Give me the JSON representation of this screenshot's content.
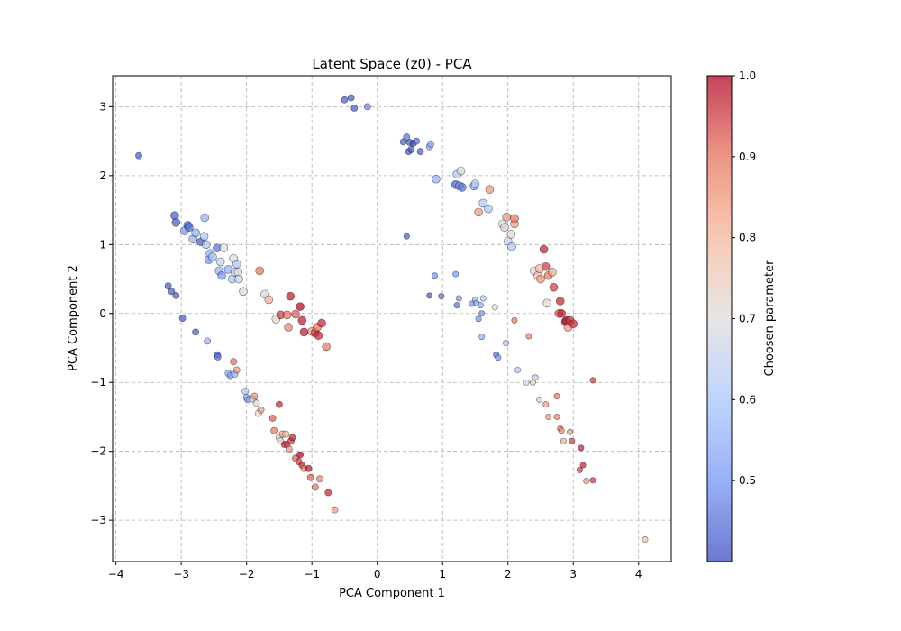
{
  "chart_data": {
    "type": "scatter",
    "title": "Latent Space (z0) - PCA",
    "xlabel": "PCA Component 1",
    "ylabel": "PCA Component 2",
    "xlim": [
      -4.05,
      4.5
    ],
    "ylim": [
      -3.6,
      3.45
    ],
    "xticks": [
      -4,
      -3,
      -2,
      -1,
      0,
      1,
      2,
      3,
      4
    ],
    "xtick_labels": [
      "−4",
      "−3",
      "−2",
      "−1",
      "0",
      "1",
      "2",
      "3",
      "4"
    ],
    "yticks": [
      -3,
      -2,
      -1,
      0,
      1,
      2,
      3
    ],
    "ytick_labels": [
      "−3",
      "−2",
      "−1",
      "0",
      "1",
      "2",
      "3"
    ],
    "grid": true,
    "colorbar": {
      "label": "Choosen parameter",
      "range": [
        0.4,
        1.0
      ],
      "ticks": [
        0.5,
        0.6,
        0.7,
        0.8,
        0.9,
        1.0
      ],
      "tick_labels": [
        "0.5",
        "0.6",
        "0.7",
        "0.8",
        "0.9",
        "1.0"
      ],
      "colormap": "coolwarm",
      "colors": [
        "#3b4cc0",
        "#7597f6",
        "#aac7fd",
        "#dddddd",
        "#f7b89c",
        "#e7745b",
        "#b40426"
      ]
    },
    "points": [
      [
        -3.65,
        2.29,
        0.42,
        1
      ],
      [
        -0.5,
        3.1,
        0.42,
        1
      ],
      [
        -0.4,
        3.13,
        0.42,
        1
      ],
      [
        -0.35,
        2.98,
        0.42,
        1
      ],
      [
        -0.15,
        3.0,
        0.48,
        1
      ],
      [
        0.4,
        2.49,
        0.42,
        1
      ],
      [
        0.45,
        2.56,
        0.45,
        1
      ],
      [
        0.5,
        2.48,
        0.42,
        1
      ],
      [
        0.55,
        2.47,
        0.4,
        1
      ],
      [
        0.48,
        2.35,
        0.42,
        1
      ],
      [
        0.52,
        2.38,
        0.42,
        1
      ],
      [
        0.6,
        2.5,
        0.45,
        1
      ],
      [
        0.66,
        2.35,
        0.42,
        1
      ],
      [
        0.8,
        2.42,
        0.52,
        1
      ],
      [
        0.82,
        2.46,
        0.55,
        1
      ],
      [
        -3.1,
        1.42,
        0.42,
        0
      ],
      [
        -3.08,
        1.32,
        0.42,
        0
      ],
      [
        -2.95,
        1.2,
        0.5,
        0
      ],
      [
        -2.9,
        1.28,
        0.42,
        0
      ],
      [
        -2.88,
        1.25,
        0.45,
        0
      ],
      [
        -2.82,
        1.08,
        0.55,
        0
      ],
      [
        -2.78,
        1.17,
        0.55,
        0
      ],
      [
        -2.7,
        1.04,
        0.42,
        0
      ],
      [
        -2.65,
        1.12,
        0.6,
        0
      ],
      [
        -2.64,
        1.39,
        0.55,
        0
      ],
      [
        -2.62,
        1.0,
        0.6,
        0
      ],
      [
        -2.58,
        0.78,
        0.5,
        0
      ],
      [
        -2.56,
        0.87,
        0.55,
        0
      ],
      [
        -2.52,
        0.82,
        0.6,
        0
      ],
      [
        -2.45,
        0.95,
        0.45,
        0
      ],
      [
        -2.42,
        0.62,
        0.55,
        0
      ],
      [
        -2.4,
        0.75,
        0.65,
        0
      ],
      [
        -2.38,
        0.55,
        0.5,
        0
      ],
      [
        -2.35,
        0.95,
        0.7,
        0
      ],
      [
        -2.28,
        0.64,
        0.55,
        0
      ],
      [
        -2.22,
        0.5,
        0.6,
        0
      ],
      [
        -2.2,
        0.8,
        0.7,
        0
      ],
      [
        -2.18,
        0.6,
        0.65,
        0
      ],
      [
        -2.15,
        0.72,
        0.6,
        0
      ],
      [
        -2.13,
        0.6,
        0.7,
        0
      ],
      [
        -2.12,
        0.5,
        0.65,
        0
      ],
      [
        -2.05,
        0.32,
        0.72,
        0
      ],
      [
        -1.8,
        0.62,
        0.9,
        0
      ],
      [
        -1.72,
        0.28,
        0.68,
        0
      ],
      [
        -1.66,
        0.2,
        0.82,
        0
      ],
      [
        -1.55,
        -0.08,
        0.72,
        0
      ],
      [
        -1.48,
        -0.02,
        0.95,
        0
      ],
      [
        -1.38,
        -0.02,
        0.9,
        0
      ],
      [
        -1.36,
        -0.2,
        0.88,
        0
      ],
      [
        -1.33,
        0.25,
        0.98,
        0
      ],
      [
        -1.25,
        -0.01,
        0.92,
        0
      ],
      [
        -1.18,
        0.1,
        1.0,
        0
      ],
      [
        -1.15,
        -0.1,
        0.98,
        0
      ],
      [
        -1.12,
        -0.27,
        0.98,
        0
      ],
      [
        -1.0,
        -0.26,
        0.85,
        0
      ],
      [
        -0.95,
        -0.28,
        0.95,
        0
      ],
      [
        -0.92,
        -0.2,
        0.9,
        0
      ],
      [
        -0.9,
        -0.32,
        0.97,
        0
      ],
      [
        -0.85,
        -0.14,
        0.97,
        0
      ],
      [
        -0.78,
        -0.48,
        0.9,
        0
      ],
      [
        -3.2,
        0.4,
        0.42,
        1
      ],
      [
        -3.15,
        0.32,
        0.42,
        1
      ],
      [
        -3.08,
        0.26,
        0.42,
        1
      ],
      [
        -2.98,
        -0.07,
        0.42,
        1
      ],
      [
        -2.78,
        -0.27,
        0.42,
        1
      ],
      [
        -2.6,
        -0.4,
        0.55,
        1
      ],
      [
        -2.45,
        -0.6,
        0.42,
        1
      ],
      [
        -2.44,
        -0.63,
        0.45,
        1
      ],
      [
        -2.28,
        -0.87,
        0.55,
        1
      ],
      [
        -2.25,
        -0.9,
        0.5,
        1
      ],
      [
        -2.2,
        -0.7,
        0.9,
        1
      ],
      [
        -2.18,
        -0.88,
        0.55,
        1
      ],
      [
        -2.15,
        -0.82,
        0.85,
        1
      ],
      [
        -2.02,
        -1.13,
        0.6,
        1
      ],
      [
        -2.0,
        -1.22,
        0.55,
        1
      ],
      [
        -1.98,
        -1.25,
        0.5,
        1
      ],
      [
        -1.9,
        -1.24,
        0.65,
        1
      ],
      [
        -1.88,
        -1.2,
        0.85,
        1
      ],
      [
        -1.85,
        -1.3,
        0.72,
        1
      ],
      [
        -1.82,
        -1.45,
        0.72,
        1
      ],
      [
        -1.78,
        -1.4,
        0.85,
        1
      ],
      [
        -1.6,
        -1.52,
        0.92,
        1
      ],
      [
        -1.58,
        -1.7,
        0.9,
        1
      ],
      [
        -1.5,
        -1.32,
        0.97,
        1
      ],
      [
        -1.5,
        -1.8,
        0.72,
        1
      ],
      [
        -1.48,
        -1.85,
        0.72,
        1
      ],
      [
        -1.45,
        -1.75,
        0.82,
        1
      ],
      [
        -1.42,
        -1.9,
        0.97,
        1
      ],
      [
        -1.4,
        -1.75,
        0.78,
        1
      ],
      [
        -1.38,
        -1.9,
        0.95,
        1
      ],
      [
        -1.35,
        -1.97,
        0.85,
        1
      ],
      [
        -1.32,
        -1.85,
        0.95,
        1
      ],
      [
        -1.3,
        -1.8,
        0.97,
        1
      ],
      [
        -1.25,
        -2.1,
        0.92,
        1
      ],
      [
        -1.2,
        -2.15,
        0.95,
        1
      ],
      [
        -1.18,
        -2.05,
        1.0,
        1
      ],
      [
        -1.15,
        -2.2,
        0.97,
        1
      ],
      [
        -1.12,
        -2.25,
        0.88,
        1
      ],
      [
        -1.05,
        -2.25,
        0.98,
        1
      ],
      [
        -1.02,
        -2.38,
        0.92,
        1
      ],
      [
        -0.95,
        -2.52,
        0.9,
        1
      ],
      [
        -0.88,
        -2.4,
        0.88,
        1
      ],
      [
        -0.75,
        -2.6,
        0.97,
        1
      ],
      [
        -0.65,
        -2.85,
        0.85,
        1
      ],
      [
        0.9,
        1.95,
        0.55,
        0
      ],
      [
        1.2,
        1.87,
        0.42,
        0
      ],
      [
        1.22,
        2.02,
        0.6,
        0
      ],
      [
        1.26,
        1.85,
        0.5,
        0
      ],
      [
        1.28,
        2.07,
        0.68,
        0
      ],
      [
        1.3,
        1.83,
        0.45,
        0
      ],
      [
        1.48,
        1.85,
        0.55,
        0
      ],
      [
        1.5,
        1.88,
        0.62,
        0
      ],
      [
        1.55,
        1.47,
        0.85,
        0
      ],
      [
        1.62,
        1.6,
        0.6,
        0
      ],
      [
        1.7,
        1.52,
        0.6,
        0
      ],
      [
        1.72,
        1.8,
        0.85,
        0
      ],
      [
        1.92,
        1.3,
        0.7,
        0
      ],
      [
        1.95,
        1.25,
        0.72,
        0
      ],
      [
        1.98,
        1.4,
        0.85,
        0
      ],
      [
        2.0,
        1.05,
        0.65,
        0
      ],
      [
        2.05,
        1.15,
        0.72,
        0
      ],
      [
        2.06,
        0.97,
        0.6,
        0
      ],
      [
        2.1,
        1.3,
        0.85,
        0
      ],
      [
        2.1,
        1.38,
        0.9,
        0
      ],
      [
        2.4,
        0.62,
        0.72,
        0
      ],
      [
        2.46,
        0.55,
        0.78,
        0
      ],
      [
        2.48,
        0.65,
        0.8,
        0
      ],
      [
        2.5,
        0.5,
        0.85,
        0
      ],
      [
        2.55,
        0.93,
        0.97,
        0
      ],
      [
        2.58,
        0.68,
        0.95,
        0
      ],
      [
        2.6,
        0.15,
        0.72,
        0
      ],
      [
        2.62,
        0.55,
        0.9,
        0
      ],
      [
        2.68,
        0.6,
        0.82,
        0
      ],
      [
        2.7,
        0.38,
        0.95,
        0
      ],
      [
        2.78,
        0.0,
        0.92,
        0
      ],
      [
        2.8,
        0.18,
        0.97,
        0
      ],
      [
        2.82,
        0.0,
        0.98,
        0
      ],
      [
        2.88,
        -0.12,
        1.0,
        0
      ],
      [
        2.9,
        -0.1,
        0.98,
        0
      ],
      [
        2.92,
        -0.2,
        0.85,
        0
      ],
      [
        2.95,
        -0.1,
        0.95,
        0
      ],
      [
        3.0,
        -0.15,
        0.97,
        0
      ],
      [
        0.45,
        1.12,
        0.42,
        2
      ],
      [
        0.88,
        0.55,
        0.5,
        2
      ],
      [
        0.8,
        0.26,
        0.42,
        2
      ],
      [
        0.98,
        0.25,
        0.45,
        2
      ],
      [
        1.2,
        0.57,
        0.5,
        2
      ],
      [
        1.22,
        0.12,
        0.45,
        2
      ],
      [
        1.25,
        0.22,
        0.5,
        2
      ],
      [
        1.45,
        0.14,
        0.5,
        2
      ],
      [
        1.5,
        0.2,
        0.55,
        2
      ],
      [
        1.52,
        0.15,
        0.55,
        2
      ],
      [
        1.55,
        -0.08,
        0.5,
        2
      ],
      [
        1.58,
        0.12,
        0.55,
        2
      ],
      [
        1.6,
        0.0,
        0.5,
        2
      ],
      [
        1.62,
        0.22,
        0.6,
        2
      ],
      [
        1.6,
        -0.34,
        0.55,
        2
      ],
      [
        1.8,
        0.09,
        0.7,
        2
      ],
      [
        1.82,
        -0.6,
        0.45,
        2
      ],
      [
        1.85,
        -0.64,
        0.5,
        2
      ],
      [
        1.97,
        -0.43,
        0.6,
        2
      ],
      [
        2.1,
        -0.1,
        0.9,
        2
      ],
      [
        2.15,
        -0.82,
        0.6,
        2
      ],
      [
        2.28,
        -1.0,
        0.68,
        2
      ],
      [
        2.32,
        -0.33,
        0.88,
        2
      ],
      [
        2.38,
        -1.0,
        0.75,
        2
      ],
      [
        2.42,
        -0.93,
        0.62,
        2
      ],
      [
        2.48,
        -1.25,
        0.65,
        2
      ],
      [
        2.58,
        -1.32,
        0.85,
        2
      ],
      [
        2.62,
        -1.5,
        0.85,
        2
      ],
      [
        2.75,
        -1.2,
        0.9,
        2
      ],
      [
        2.75,
        -1.5,
        0.88,
        2
      ],
      [
        2.8,
        -1.67,
        0.9,
        2
      ],
      [
        2.82,
        -1.7,
        0.85,
        2
      ],
      [
        2.85,
        -1.85,
        0.82,
        2
      ],
      [
        2.95,
        -1.72,
        0.85,
        2
      ],
      [
        2.98,
        -1.85,
        0.95,
        2
      ],
      [
        3.12,
        -1.95,
        0.97,
        2
      ],
      [
        3.1,
        -2.27,
        0.95,
        2
      ],
      [
        3.15,
        -2.2,
        0.97,
        2
      ],
      [
        3.2,
        -2.43,
        0.85,
        2
      ],
      [
        3.3,
        -2.42,
        0.95,
        2
      ],
      [
        3.3,
        -0.97,
        0.95,
        2
      ],
      [
        4.1,
        -3.28,
        0.78,
        2
      ]
    ]
  }
}
